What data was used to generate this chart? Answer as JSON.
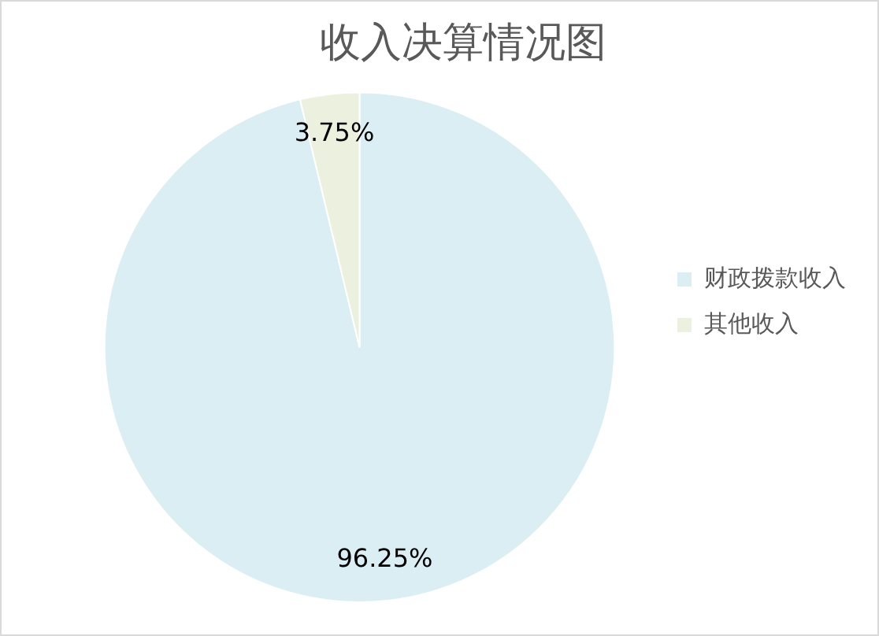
{
  "chart_data": {
    "type": "pie",
    "title": "收入决算情况图",
    "categories": [
      "财政拨款收入",
      "其他收入"
    ],
    "values": [
      96.25,
      3.75
    ],
    "colors": [
      "#daeef3",
      "#ebf1de"
    ],
    "value_labels": [
      "96.25%",
      "3.75%"
    ],
    "legend": "right"
  }
}
